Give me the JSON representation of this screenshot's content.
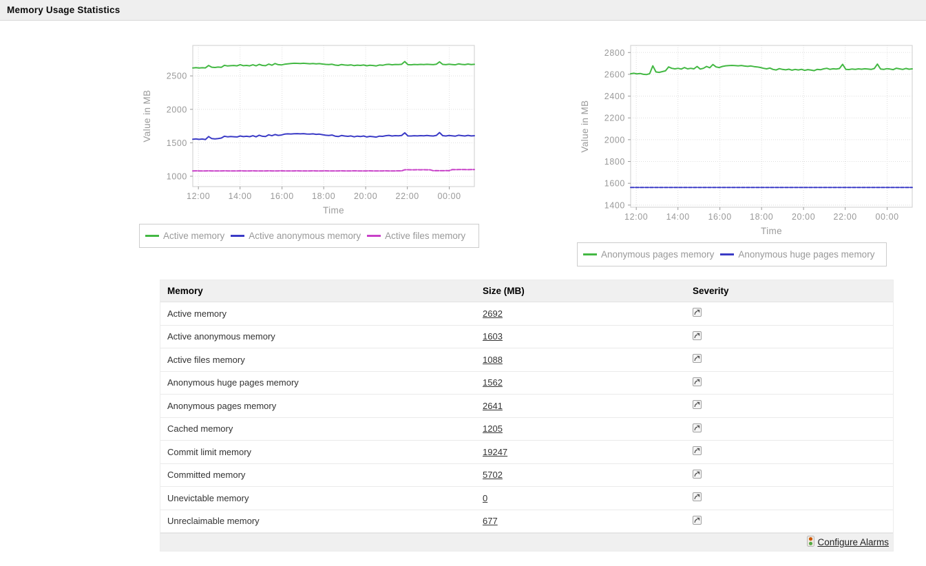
{
  "header": {
    "title": "Memory Usage Statistics"
  },
  "colors": {
    "green_line": "#43b843",
    "blue_line": "#3a3ac6",
    "magenta_line": "#c840c8",
    "axis_text": "#999999",
    "grid": "#dddddd",
    "header_bg": "#f0f0f0"
  },
  "chart_data": [
    {
      "type": "line",
      "title": "",
      "xlabel": "Time",
      "ylabel": "Value in MB",
      "x_ticks": [
        "12:00",
        "14:00",
        "16:00",
        "18:00",
        "20:00",
        "22:00",
        "00:00"
      ],
      "x_tick_pos": [
        0.02,
        0.168,
        0.317,
        0.465,
        0.614,
        0.762,
        0.911
      ],
      "y_ticks": [
        1000,
        1500,
        2000,
        2500
      ],
      "ylim": [
        845,
        2955
      ],
      "grid": true,
      "legend_position": "bottom",
      "series": [
        {
          "name": "Active memory",
          "color": "#43b843",
          "dash": "",
          "values": [
            2618,
            2624,
            2618,
            2622,
            2619,
            2655,
            2630,
            2626,
            2632,
            2628,
            2658,
            2648,
            2652,
            2655,
            2650,
            2668,
            2652,
            2656,
            2650,
            2666,
            2650,
            2672,
            2656,
            2652,
            2676,
            2660,
            2684,
            2668,
            2664,
            2674,
            2680,
            2684,
            2688,
            2687,
            2684,
            2688,
            2684,
            2681,
            2685,
            2679,
            2683,
            2677,
            2672,
            2669,
            2674,
            2662,
            2656,
            2670,
            2663,
            2659,
            2665,
            2653,
            2661,
            2657,
            2663,
            2651,
            2659,
            2655,
            2649,
            2663,
            2659,
            2669,
            2673,
            2666,
            2671,
            2669,
            2673,
            2714,
            2668,
            2666,
            2671,
            2668,
            2672,
            2669,
            2673,
            2671,
            2668,
            2675,
            2710,
            2672,
            2668,
            2675,
            2670,
            2666,
            2679,
            2672,
            2668,
            2677,
            2670,
            2673
          ]
        },
        {
          "name": "Active anonymous memory",
          "color": "#3a3ac6",
          "dash": "",
          "values": [
            1552,
            1558,
            1551,
            1556,
            1549,
            1593,
            1562,
            1558,
            1563,
            1571,
            1597,
            1589,
            1593,
            1590,
            1587,
            1602,
            1592,
            1597,
            1591,
            1606,
            1589,
            1613,
            1597,
            1593,
            1619,
            1606,
            1623,
            1611,
            1616,
            1629,
            1633,
            1631,
            1635,
            1637,
            1633,
            1636,
            1631,
            1629,
            1633,
            1626,
            1629,
            1621,
            1613,
            1609,
            1616,
            1599,
            1593,
            1609,
            1601,
            1596,
            1603,
            1589,
            1599,
            1593,
            1601,
            1587,
            1596,
            1591,
            1585,
            1599,
            1596,
            1606,
            1611,
            1601,
            1607,
            1605,
            1609,
            1649,
            1603,
            1601,
            1606,
            1603,
            1607,
            1604,
            1609,
            1605,
            1601,
            1611,
            1653,
            1607,
            1601,
            1609,
            1605,
            1599,
            1613,
            1607,
            1601,
            1611,
            1603,
            1606
          ]
        },
        {
          "name": "Active files memory",
          "color": "#c840c8",
          "dash": "6,2",
          "values": [
            1080,
            1081,
            1080,
            1079,
            1080,
            1081,
            1080,
            1080,
            1079,
            1080,
            1081,
            1080,
            1079,
            1080,
            1080,
            1081,
            1080,
            1079,
            1080,
            1081,
            1080,
            1080,
            1079,
            1080,
            1081,
            1080,
            1079,
            1080,
            1081,
            1080,
            1080,
            1079,
            1080,
            1081,
            1080,
            1079,
            1080,
            1080,
            1081,
            1080,
            1079,
            1080,
            1081,
            1080,
            1080,
            1079,
            1080,
            1081,
            1080,
            1079,
            1080,
            1081,
            1080,
            1080,
            1079,
            1080,
            1081,
            1080,
            1079,
            1080,
            1080,
            1081,
            1080,
            1079,
            1080,
            1081,
            1080,
            1096,
            1097,
            1096,
            1096,
            1097,
            1096,
            1097,
            1096,
            1096,
            1083,
            1084,
            1083,
            1083,
            1084,
            1083,
            1099,
            1098,
            1099,
            1100,
            1099,
            1098,
            1099,
            1100
          ]
        }
      ]
    },
    {
      "type": "line",
      "title": "",
      "xlabel": "Time",
      "ylabel": "Value in MB",
      "x_ticks": [
        "12:00",
        "14:00",
        "16:00",
        "18:00",
        "20:00",
        "22:00",
        "00:00"
      ],
      "x_tick_pos": [
        0.02,
        0.168,
        0.317,
        0.465,
        0.614,
        0.762,
        0.911
      ],
      "y_ticks": [
        1400,
        1600,
        1800,
        2000,
        2200,
        2400,
        2600,
        2800
      ],
      "ylim": [
        1380,
        2865
      ],
      "grid": true,
      "legend_position": "bottom",
      "series": [
        {
          "name": "Anonymous pages memory",
          "color": "#43b843",
          "dash": "",
          "values": [
            2605,
            2610,
            2604,
            2608,
            2600,
            2598,
            2606,
            2678,
            2622,
            2618,
            2625,
            2632,
            2668,
            2655,
            2650,
            2655,
            2648,
            2662,
            2650,
            2655,
            2650,
            2672,
            2648,
            2655,
            2672,
            2660,
            2690,
            2668,
            2662,
            2672,
            2678,
            2680,
            2682,
            2680,
            2678,
            2681,
            2676,
            2673,
            2677,
            2671,
            2668,
            2663,
            2655,
            2650,
            2658,
            2645,
            2640,
            2652,
            2645,
            2641,
            2647,
            2638,
            2645,
            2640,
            2646,
            2636,
            2643,
            2639,
            2634,
            2646,
            2642,
            2650,
            2655,
            2646,
            2651,
            2649,
            2653,
            2692,
            2646,
            2644,
            2649,
            2646,
            2650,
            2647,
            2651,
            2648,
            2645,
            2653,
            2694,
            2649,
            2645,
            2652,
            2648,
            2643,
            2656,
            2650,
            2645,
            2654,
            2647,
            2650
          ]
        },
        {
          "name": "Anonymous huge pages memory",
          "color": "#3a3ac6",
          "dash": "5,2",
          "values": [
            1562,
            1562
          ]
        }
      ]
    }
  ],
  "table": {
    "columns": [
      "Memory",
      "Size (MB)",
      "Severity"
    ],
    "rows": [
      {
        "memory": "Active memory",
        "size": "2692"
      },
      {
        "memory": "Active anonymous memory",
        "size": "1603"
      },
      {
        "memory": "Active files memory",
        "size": "1088"
      },
      {
        "memory": "Anonymous huge pages memory",
        "size": "1562"
      },
      {
        "memory": "Anonymous pages memory",
        "size": "2641"
      },
      {
        "memory": "Cached memory",
        "size": "1205"
      },
      {
        "memory": "Commit limit memory",
        "size": "19247"
      },
      {
        "memory": "Committed memory",
        "size": "5702"
      },
      {
        "memory": "Unevictable memory",
        "size": "0"
      },
      {
        "memory": "Unreclaimable memory",
        "size": "677"
      }
    ],
    "severity_icon": "clear-severity-arrow-icon"
  },
  "footer": {
    "configure_alarms": "Configure Alarms",
    "icon": "traffic-light-icon"
  }
}
